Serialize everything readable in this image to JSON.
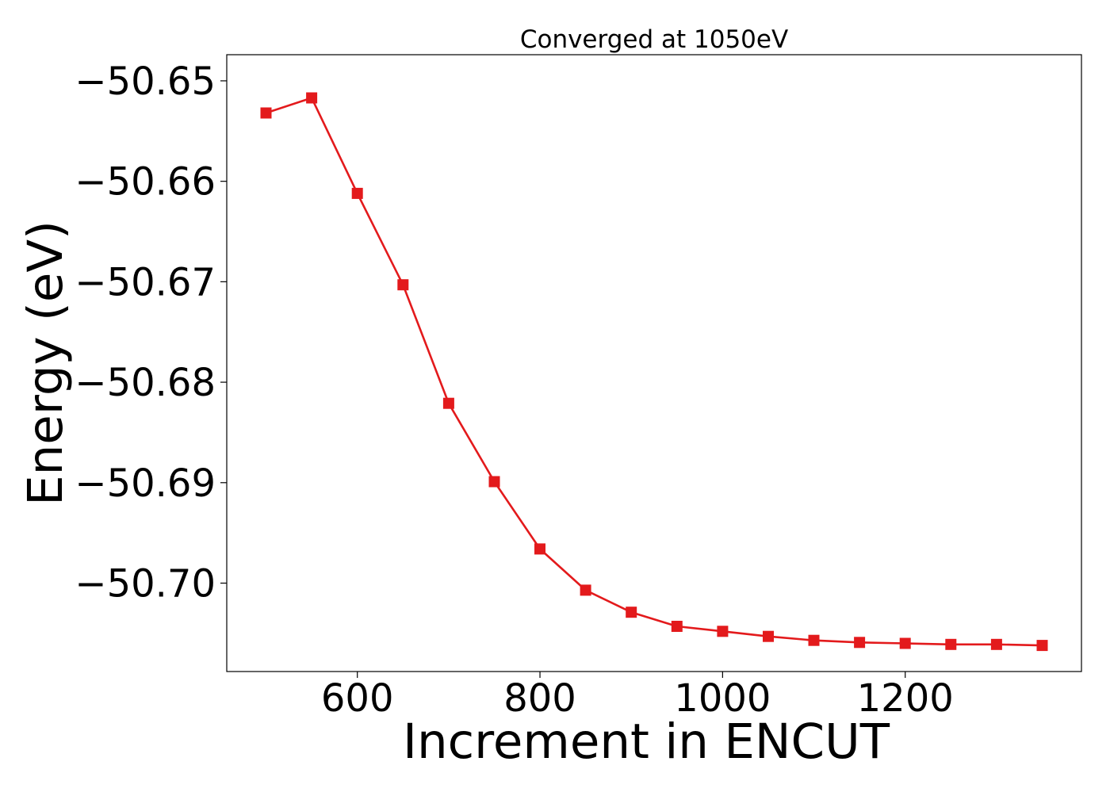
{
  "chart_data": {
    "type": "line",
    "title": "Converged at 1050eV",
    "xlabel": "Increment in ENCUT",
    "ylabel": "Energy (eV)",
    "x": [
      500,
      550,
      600,
      650,
      700,
      750,
      800,
      850,
      900,
      950,
      1000,
      1050,
      1100,
      1150,
      1200,
      1250,
      1300,
      1350
    ],
    "series": [
      {
        "values": [
          -50.6532,
          -50.6517,
          -50.6612,
          -50.6703,
          -50.6821,
          -50.6899,
          -50.6966,
          -50.7007,
          -50.7029,
          -50.7043,
          -50.7048,
          -50.7053,
          -50.7057,
          -50.7059,
          -50.706,
          -50.7061,
          -50.7061,
          -50.7062
        ],
        "color": "#e31a1c",
        "marker": "square"
      }
    ],
    "xlim": [
      457,
      1393
    ],
    "ylim": [
      -50.7088,
      -50.6474
    ],
    "xticks": [
      600,
      800,
      1000,
      1200
    ],
    "xtick_labels": [
      "600",
      "800",
      "1000",
      "1200"
    ],
    "yticks": [
      -50.65,
      -50.66,
      -50.67,
      -50.68,
      -50.69,
      -50.7
    ],
    "ytick_labels": [
      "−50.65",
      "−50.66",
      "−50.67",
      "−50.68",
      "−50.69",
      "−50.70"
    ],
    "grid": false,
    "legend": "none"
  }
}
